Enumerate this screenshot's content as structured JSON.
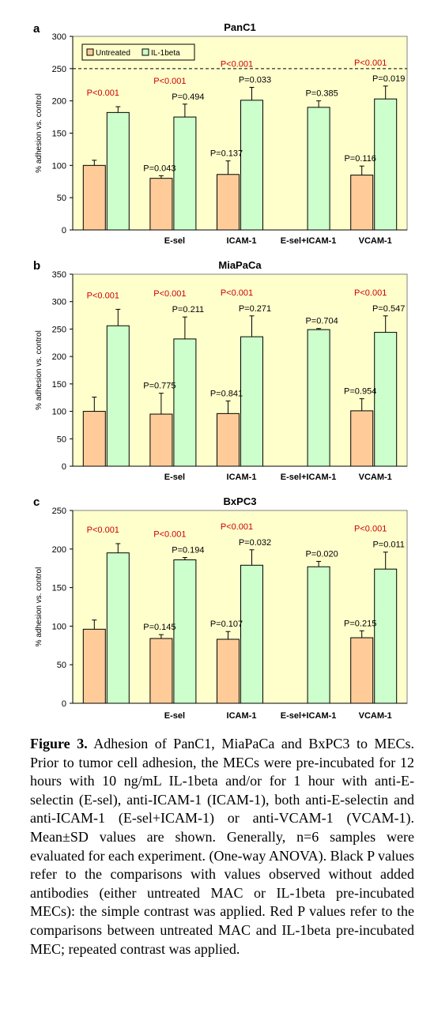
{
  "colors": {
    "plot_bg": "#FFFFCC",
    "untreated": "#FFCC99",
    "il1beta": "#CCFFCC",
    "bar_edge": "#000000",
    "red_p": "#CC0000",
    "black_p": "#000000",
    "grid": "#000000"
  },
  "legend": {
    "untreated": "Untreated",
    "il1beta": "IL-1beta"
  },
  "chart_data": [
    {
      "type": "bar",
      "panel": "a",
      "title": "PanC1",
      "ylabel": "% adhesion vs. control",
      "xlabel": "",
      "ylim": [
        0,
        300
      ],
      "yticks": [
        "0",
        "50",
        "100",
        "150",
        "200",
        "250",
        "300"
      ],
      "grid": "dashed at 250",
      "legend_position": "top-left",
      "categories": [
        "",
        "E-sel",
        "ICAM-1",
        "E-sel+ICAM-1",
        "VCAM-1"
      ],
      "series": [
        {
          "name": "Untreated",
          "values": [
            100,
            80,
            86,
            null,
            85
          ],
          "errors": [
            8,
            4,
            21,
            null,
            14
          ]
        },
        {
          "name": "IL-1beta",
          "values": [
            182,
            175,
            201,
            190,
            203
          ],
          "errors": [
            9,
            20,
            20,
            10,
            20
          ]
        }
      ],
      "black_p": [
        null,
        "P=0.043",
        "P=0.137",
        null,
        "P=0.116"
      ],
      "il_black_p": [
        null,
        "P=0.494",
        "P=0.033",
        "P=0.385",
        "P=0.019"
      ],
      "red_p": [
        "P<0.001",
        "P<0.001",
        "P<0.001",
        null,
        "P<0.001"
      ]
    },
    {
      "type": "bar",
      "panel": "b",
      "title": "MiaPaCa",
      "ylabel": "% adhesion vs. control",
      "xlabel": "",
      "ylim": [
        0,
        350
      ],
      "yticks": [
        "0",
        "50",
        "100",
        "150",
        "200",
        "250",
        "300",
        "350"
      ],
      "grid": "none",
      "categories": [
        "",
        "E-sel",
        "ICAM-1",
        "E-sel+ICAM-1",
        "VCAM-1"
      ],
      "series": [
        {
          "name": "Untreated",
          "values": [
            100,
            95,
            96,
            null,
            101
          ],
          "errors": [
            26,
            38,
            23,
            null,
            22
          ]
        },
        {
          "name": "IL-1beta",
          "values": [
            256,
            232,
            236,
            249,
            244
          ],
          "errors": [
            30,
            40,
            38,
            2,
            30
          ]
        }
      ],
      "black_p": [
        null,
        "P=0.775",
        "P=0.841",
        null,
        "P=0.954"
      ],
      "il_black_p": [
        null,
        "P=0.211",
        "P=0.271",
        "P=0.704",
        "P=0.547"
      ],
      "red_p": [
        "P<0.001",
        "P<0.001",
        "P<0.001",
        null,
        "P<0.001"
      ]
    },
    {
      "type": "bar",
      "panel": "c",
      "title": "BxPC3",
      "ylabel": "% adhesion vs. control",
      "xlabel": "",
      "ylim": [
        0,
        250
      ],
      "yticks": [
        "0",
        "50",
        "100",
        "150",
        "200",
        "250"
      ],
      "grid": "none",
      "categories": [
        "",
        "E-sel",
        "ICAM-1",
        "E-sel+ICAM-1",
        "VCAM-1"
      ],
      "series": [
        {
          "name": "Untreated",
          "values": [
            96,
            84,
            83,
            null,
            85
          ],
          "errors": [
            12,
            5,
            10,
            null,
            9
          ]
        },
        {
          "name": "IL-1beta",
          "values": [
            195,
            186,
            179,
            177,
            174
          ],
          "errors": [
            12,
            3,
            20,
            7,
            22
          ]
        }
      ],
      "black_p": [
        null,
        "P=0.145",
        "P=0.107",
        null,
        "P=0.215"
      ],
      "il_black_p": [
        null,
        "P=0.194",
        "P=0.032",
        "P=0.020",
        "P=0.011"
      ],
      "red_p": [
        "P<0.001",
        "P<0.001",
        "P<0.001",
        null,
        "P<0.001"
      ]
    }
  ],
  "caption": {
    "label": "Figure 3.",
    "text": " Adhesion of PanC1, MiaPaCa and BxPC3 to MECs. Prior to tumor cell adhesion, the MECs were pre-incubated for 12 hours with 10 ng/mL IL-1beta and/or for 1 hour with anti-E-selectin (E-sel), anti-ICAM-1 (ICAM-1), both anti-E-selectin and anti-ICAM-1 (E-sel+ICAM-1) or anti-VCAM-1 (VCAM-1). Mean±SD values are shown. Generally, n=6 samples were evaluated for each experiment. (One-way ANOVA). Black P values refer to the comparisons with values observed without added antibodies (either untreated MAC or IL-1beta pre-incubated MECs): the simple contrast was applied. Red P values refer to the comparisons between untreated MAC and IL-1beta pre-incubated MEC; repeated contrast was applied."
  }
}
